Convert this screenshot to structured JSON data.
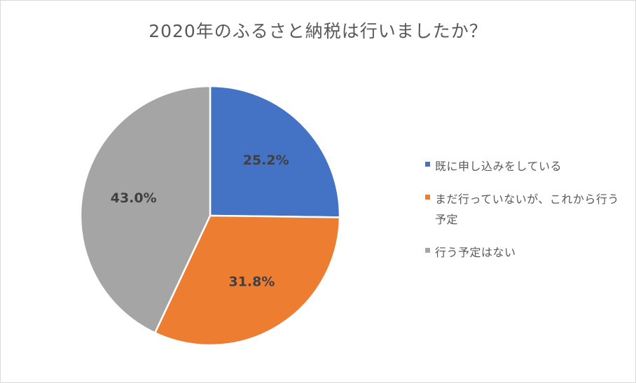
{
  "chart_data": {
    "type": "pie",
    "title": "2020年のふるさと納税は行いましたか？",
    "categories": [
      "既に申し込みをしている",
      "まだ行っていないが、これから行う予定",
      "行う予定はない"
    ],
    "values": [
      25.2,
      31.8,
      43.0
    ],
    "data_labels": [
      "25.2%",
      "31.8%",
      "43.0%"
    ],
    "colors": [
      "#4472c4",
      "#ed7d31",
      "#a5a5a5"
    ],
    "legend_position": "right"
  }
}
